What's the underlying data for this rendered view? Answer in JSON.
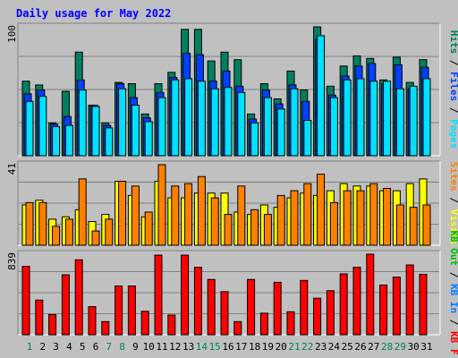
{
  "chart_data": [
    {
      "type": "bar",
      "title": "Daily usage for May 2022",
      "panel": "hits-files-pages",
      "y_max_label": "100",
      "grid": true,
      "legend_placement": "right",
      "legend": [
        {
          "name": "Pages",
          "color": "#00e0ff"
        },
        {
          "name": "Files",
          "color": "#0040ff"
        },
        {
          "name": "Hits",
          "color": "#00805c"
        }
      ],
      "categories": [
        "1",
        "2",
        "3",
        "4",
        "5",
        "6",
        "7",
        "8",
        "9",
        "10",
        "11",
        "12",
        "13",
        "14",
        "15",
        "16",
        "17",
        "18",
        "19",
        "20",
        "21",
        "22",
        "23",
        "24",
        "25",
        "26",
        "27",
        "28",
        "29",
        "30",
        "31"
      ],
      "series": [
        {
          "name": "Hits",
          "values": [
            59,
            56,
            26,
            51,
            82,
            40,
            26,
            58,
            57,
            33,
            57,
            66,
            100,
            100,
            75,
            82,
            76,
            33,
            57,
            45,
            67,
            52,
            102,
            55,
            71,
            79,
            77,
            60,
            78,
            58,
            76
          ]
        },
        {
          "name": "Files",
          "values": [
            49,
            52,
            25,
            31,
            60,
            40,
            24,
            57,
            46,
            30,
            50,
            62,
            81,
            80,
            59,
            67,
            55,
            29,
            52,
            41,
            56,
            43,
            92,
            48,
            63,
            71,
            73,
            57,
            72,
            53,
            70
          ]
        },
        {
          "name": "Pages",
          "values": [
            43,
            47,
            23,
            24,
            52,
            39,
            22,
            53,
            40,
            27,
            46,
            60,
            61,
            59,
            53,
            54,
            50,
            26,
            46,
            37,
            53,
            28,
            95,
            46,
            60,
            61,
            59,
            59,
            53,
            55,
            61
          ]
        }
      ]
    },
    {
      "type": "bar",
      "panel": "visits-sites",
      "y_max_label": "41",
      "grid": true,
      "legend_placement": "right",
      "legend": [
        {
          "name": "Visits",
          "color": "#ffff00"
        },
        {
          "name": "Sites",
          "color": "#ff8000"
        }
      ],
      "categories": [
        "1",
        "2",
        "3",
        "4",
        "5",
        "6",
        "7",
        "8",
        "9",
        "10",
        "11",
        "12",
        "13",
        "14",
        "15",
        "16",
        "17",
        "18",
        "19",
        "20",
        "21",
        "22",
        "23",
        "24",
        "25",
        "26",
        "27",
        "28",
        "29",
        "30",
        "31"
      ],
      "series": [
        {
          "name": "Visits",
          "values": [
            17,
            19,
            11,
            12,
            15,
            10,
            13,
            27,
            21,
            12,
            27,
            20,
            20,
            22,
            22,
            22,
            14,
            13,
            17,
            16,
            20,
            22,
            21,
            23,
            26,
            25,
            25,
            23,
            23,
            26,
            28
          ]
        },
        {
          "name": "Sites",
          "values": [
            18,
            18,
            8,
            11,
            28,
            6,
            11,
            27,
            25,
            14,
            34,
            25,
            26,
            29,
            20,
            13,
            25,
            15,
            13,
            21,
            23,
            26,
            30,
            18,
            23,
            23,
            26,
            24,
            17,
            16,
            17
          ]
        }
      ]
    },
    {
      "type": "bar",
      "panel": "kbytes",
      "y_max_label": "839",
      "grid": true,
      "legend_placement": "right",
      "legend": [
        {
          "name": "KB F",
          "color": "#ff0000"
        },
        {
          "name": "KB In",
          "color": "#0080ff"
        },
        {
          "name": "KB Out",
          "color": "#00c000"
        }
      ],
      "categories": [
        "1",
        "2",
        "3",
        "4",
        "5",
        "6",
        "7",
        "8",
        "9",
        "10",
        "11",
        "12",
        "13",
        "14",
        "15",
        "16",
        "17",
        "18",
        "19",
        "20",
        "21",
        "22",
        "23",
        "24",
        "25",
        "26",
        "27",
        "28",
        "29",
        "30",
        "31"
      ],
      "series": [
        {
          "name": "KB F",
          "values": [
            730,
            370,
            215,
            640,
            800,
            300,
            140,
            520,
            520,
            250,
            850,
            210,
            850,
            720,
            590,
            460,
            140,
            590,
            230,
            560,
            245,
            580,
            390,
            470,
            650,
            720,
            860,
            530,
            615,
            745,
            645
          ]
        }
      ]
    }
  ]
}
